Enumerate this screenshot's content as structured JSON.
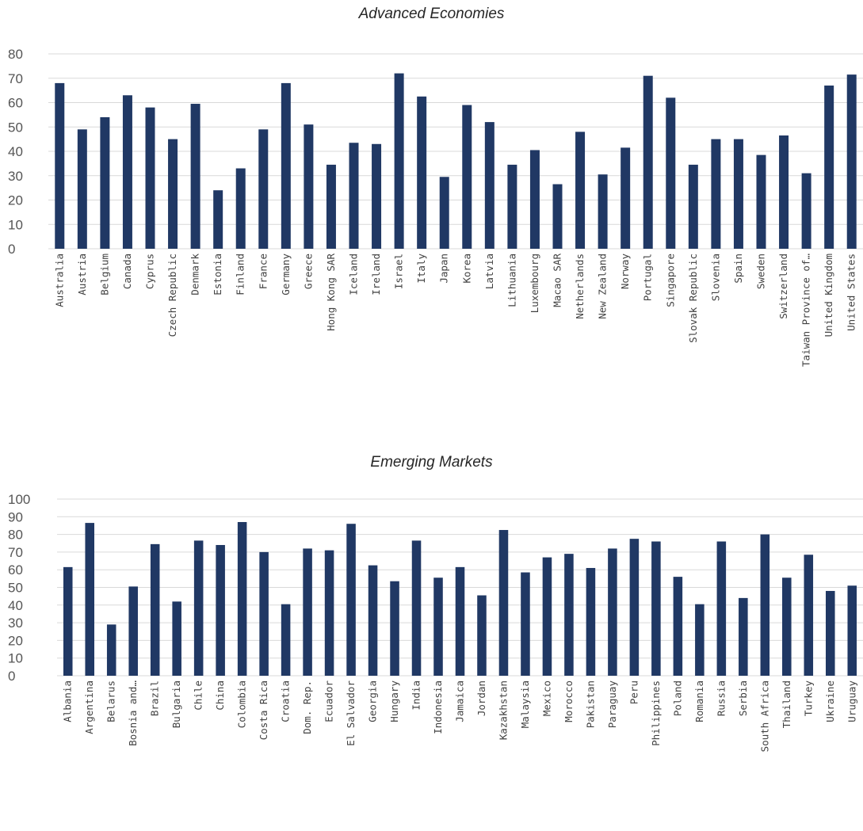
{
  "chart_data": [
    {
      "type": "bar",
      "title": "Advanced Economies",
      "xlabel": "",
      "ylabel": "",
      "ylim": [
        0,
        80
      ],
      "yticks": [
        0,
        10,
        20,
        30,
        40,
        50,
        60,
        70,
        80
      ],
      "grid": true,
      "legend": "none",
      "color": "#203864",
      "categories": [
        "Australia",
        "Austria",
        "Belgium",
        "Canada",
        "Cyprus",
        "Czech Republic",
        "Denmark",
        "Estonia",
        "Finland",
        "France",
        "Germany",
        "Greece",
        "Hong Kong SAR",
        "Iceland",
        "Ireland",
        "Israel",
        "Italy",
        "Japan",
        "Korea",
        "Latvia",
        "Lithuania",
        "Luxembourg",
        "Macao SAR",
        "Netherlands",
        "New Zealand",
        "Norway",
        "Portugal",
        "Singapore",
        "Slovak Republic",
        "Slovenia",
        "Spain",
        "Sweden",
        "Switzerland",
        "Taiwan Province of…",
        "United Kingdom",
        "United States"
      ],
      "values": [
        68,
        49,
        54,
        63,
        58,
        45,
        59.5,
        24,
        33,
        49,
        68,
        51,
        34.5,
        43.5,
        43,
        72,
        62.5,
        29.5,
        59,
        52,
        34.5,
        40.5,
        26.5,
        48,
        30.5,
        41.5,
        71,
        62,
        34.5,
        45,
        45,
        38.5,
        46.5,
        31,
        67,
        71.5
      ]
    },
    {
      "type": "bar",
      "title": "Emerging Markets",
      "xlabel": "",
      "ylabel": "",
      "ylim": [
        0,
        100
      ],
      "yticks": [
        0,
        10,
        20,
        30,
        40,
        50,
        60,
        70,
        80,
        90,
        100
      ],
      "grid": true,
      "legend": "none",
      "color": "#203864",
      "categories": [
        "Albania",
        "Argentina",
        "Belarus",
        "Bosnia and…",
        "Brazil",
        "Bulgaria",
        "Chile",
        "China",
        "Colombia",
        "Costa Rica",
        "Croatia",
        "Dom. Rep.",
        "Ecuador",
        "El Salvador",
        "Georgia",
        "Hungary",
        "India",
        "Indonesia",
        "Jamaica",
        "Jordan",
        "Kazakhstan",
        "Malaysia",
        "Mexico",
        "Morocco",
        "Pakistan",
        "Paraguay",
        "Peru",
        "Philippines",
        "Poland",
        "Romania",
        "Russia",
        "Serbia",
        "South Africa",
        "Thailand",
        "Turkey",
        "Ukraine",
        "Uruguay"
      ],
      "values": [
        61.5,
        86.5,
        29,
        50.5,
        74.5,
        42,
        76.5,
        74,
        87,
        70,
        40.5,
        72,
        71,
        86,
        62.5,
        53.5,
        76.5,
        55.5,
        61.5,
        45.5,
        82.5,
        58.5,
        67,
        69,
        61,
        72,
        77.5,
        76,
        56,
        40.5,
        76,
        44,
        80,
        55.5,
        68.5,
        48,
        51
      ]
    }
  ]
}
